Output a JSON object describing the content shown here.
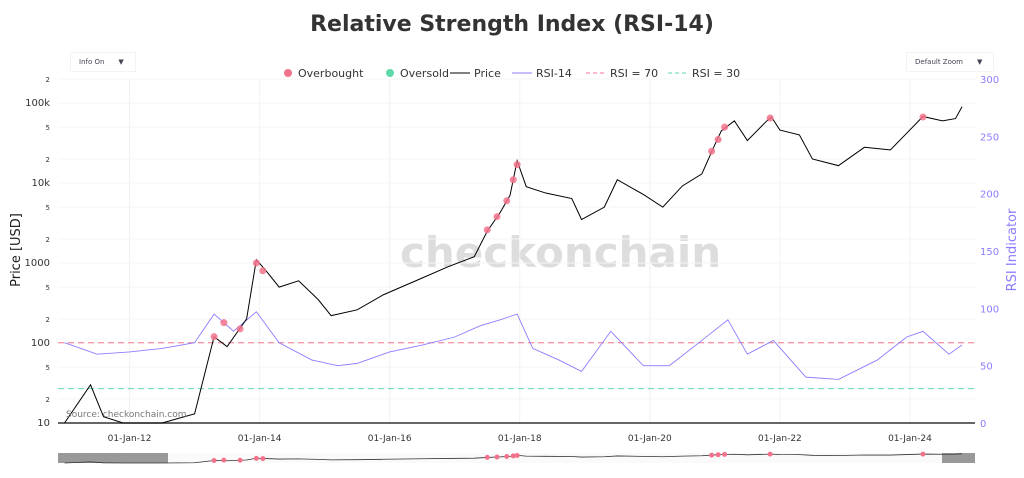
{
  "title": "Relative Strength Index (RSI-14)",
  "controls": {
    "info": "Info On",
    "zoom": "Default Zoom"
  },
  "watermark": "checkonchain",
  "source": "Source: checkonchain.com",
  "chart_data": {
    "type": "line",
    "title": "Relative Strength Index (RSI-14)",
    "ylabel": "Price [USD]",
    "y2label": "RSI Indicator",
    "yscale": "log",
    "ylim": [
      10,
      200000
    ],
    "y2lim": [
      0,
      300
    ],
    "yticks": [
      {
        "v": 10,
        "l": "10"
      },
      {
        "v": 20,
        "l": "2"
      },
      {
        "v": 50,
        "l": "5"
      },
      {
        "v": 100,
        "l": "100"
      },
      {
        "v": 200,
        "l": "2"
      },
      {
        "v": 500,
        "l": "5"
      },
      {
        "v": 1000,
        "l": "1000"
      },
      {
        "v": 2000,
        "l": "2"
      },
      {
        "v": 5000,
        "l": "5"
      },
      {
        "v": 10000,
        "l": "10k"
      },
      {
        "v": 20000,
        "l": "2"
      },
      {
        "v": 50000,
        "l": "5"
      },
      {
        "v": 100000,
        "l": "100k"
      },
      {
        "v": 200000,
        "l": "2"
      }
    ],
    "y2ticks": [
      0,
      50,
      100,
      150,
      200,
      250,
      300
    ],
    "xticks": [
      {
        "v": 2012,
        "l": "01-Jan-12"
      },
      {
        "v": 2014,
        "l": "01-Jan-14"
      },
      {
        "v": 2016,
        "l": "01-Jan-16"
      },
      {
        "v": 2018,
        "l": "01-Jan-18"
      },
      {
        "v": 2020,
        "l": "01-Jan-20"
      },
      {
        "v": 2022,
        "l": "01-Jan-22"
      },
      {
        "v": 2024,
        "l": "01-Jan-24"
      }
    ],
    "xlim": [
      2010.9,
      2025.0
    ],
    "legend": [
      "Overbought",
      "Oversold",
      "Price",
      "RSI-14",
      "RSI = 70",
      "RSI = 30"
    ],
    "colors": {
      "overbought": "#f4738c",
      "oversold": "#5fd9a8",
      "price": "#000000",
      "rsi": "#8b7dff",
      "h70": "#f4738c",
      "h30": "#5fd9a8"
    },
    "price": [
      [
        2011.0,
        5
      ],
      [
        2011.4,
        30
      ],
      [
        2011.6,
        12
      ],
      [
        2011.9,
        4
      ],
      [
        2012.5,
        8
      ],
      [
        2013.0,
        13
      ],
      [
        2013.3,
        120
      ],
      [
        2013.5,
        90
      ],
      [
        2013.8,
        200
      ],
      [
        2013.95,
        1100
      ],
      [
        2014.1,
        800
      ],
      [
        2014.3,
        500
      ],
      [
        2014.6,
        600
      ],
      [
        2014.9,
        350
      ],
      [
        2015.1,
        220
      ],
      [
        2015.5,
        260
      ],
      [
        2015.9,
        400
      ],
      [
        2016.5,
        650
      ],
      [
        2016.9,
        900
      ],
      [
        2017.3,
        1200
      ],
      [
        2017.5,
        2500
      ],
      [
        2017.7,
        4300
      ],
      [
        2017.85,
        7000
      ],
      [
        2017.96,
        19000
      ],
      [
        2018.1,
        9000
      ],
      [
        2018.4,
        7500
      ],
      [
        2018.8,
        6400
      ],
      [
        2018.95,
        3500
      ],
      [
        2019.3,
        5000
      ],
      [
        2019.5,
        11000
      ],
      [
        2019.9,
        7200
      ],
      [
        2020.2,
        5000
      ],
      [
        2020.5,
        9200
      ],
      [
        2020.8,
        13000
      ],
      [
        2020.99,
        29000
      ],
      [
        2021.1,
        45000
      ],
      [
        2021.3,
        60000
      ],
      [
        2021.5,
        34000
      ],
      [
        2021.8,
        60000
      ],
      [
        2021.87,
        67000
      ],
      [
        2022.0,
        46000
      ],
      [
        2022.3,
        40000
      ],
      [
        2022.5,
        20000
      ],
      [
        2022.9,
        16500
      ],
      [
        2023.3,
        28000
      ],
      [
        2023.7,
        26000
      ],
      [
        2023.95,
        42000
      ],
      [
        2024.2,
        68000
      ],
      [
        2024.5,
        60000
      ],
      [
        2024.7,
        64000
      ],
      [
        2024.8,
        90000
      ]
    ],
    "rsi": [
      [
        2011.0,
        70
      ],
      [
        2011.5,
        60
      ],
      [
        2012.0,
        62
      ],
      [
        2012.5,
        65
      ],
      [
        2013.0,
        70
      ],
      [
        2013.3,
        95
      ],
      [
        2013.6,
        80
      ],
      [
        2013.95,
        97
      ],
      [
        2014.3,
        70
      ],
      [
        2014.8,
        55
      ],
      [
        2015.2,
        50
      ],
      [
        2015.5,
        52
      ],
      [
        2016.0,
        62
      ],
      [
        2016.5,
        68
      ],
      [
        2017.0,
        75
      ],
      [
        2017.4,
        85
      ],
      [
        2017.7,
        90
      ],
      [
        2017.96,
        95
      ],
      [
        2018.2,
        65
      ],
      [
        2018.6,
        55
      ],
      [
        2018.95,
        45
      ],
      [
        2019.4,
        80
      ],
      [
        2019.9,
        50
      ],
      [
        2020.3,
        50
      ],
      [
        2020.8,
        72
      ],
      [
        2021.2,
        90
      ],
      [
        2021.5,
        60
      ],
      [
        2021.9,
        72
      ],
      [
        2022.4,
        40
      ],
      [
        2022.9,
        38
      ],
      [
        2023.5,
        55
      ],
      [
        2023.95,
        75
      ],
      [
        2024.2,
        80
      ],
      [
        2024.6,
        60
      ],
      [
        2024.8,
        68
      ]
    ],
    "overbought": [
      [
        2013.3,
        120
      ],
      [
        2013.45,
        180
      ],
      [
        2013.7,
        150
      ],
      [
        2013.95,
        1000
      ],
      [
        2014.05,
        800
      ],
      [
        2017.5,
        2600
      ],
      [
        2017.65,
        3800
      ],
      [
        2017.8,
        6000
      ],
      [
        2017.9,
        11000
      ],
      [
        2017.96,
        17000
      ],
      [
        2020.95,
        25000
      ],
      [
        2021.05,
        35000
      ],
      [
        2021.15,
        50000
      ],
      [
        2021.85,
        65000
      ],
      [
        2024.2,
        67000
      ]
    ]
  }
}
